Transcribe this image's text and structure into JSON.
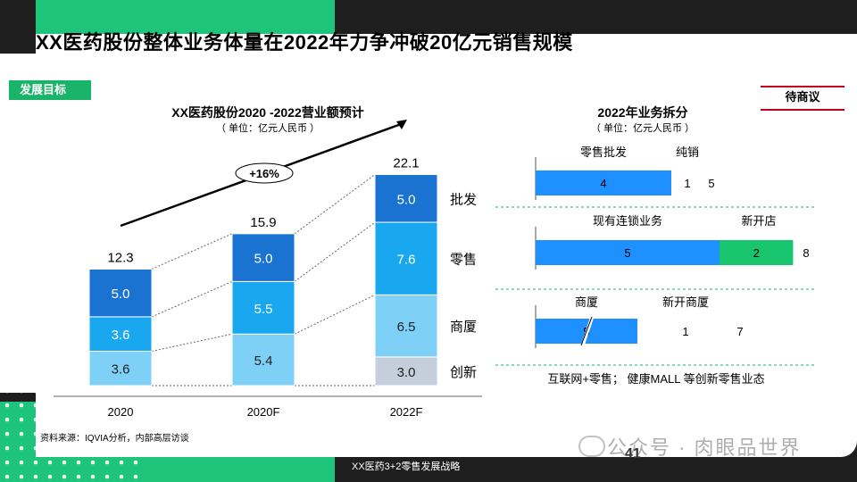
{
  "page_title": "XX医药股份整体业务体量在2022年力争冲破20亿元销售规模",
  "section_tag": "发展目标",
  "status_label": "待商议",
  "growth_label": "+16%",
  "source_note": "资料来源：IQVIA分析，内部高层访谈",
  "footer_text": "XX医药3+2零售发展战略",
  "page_number": "41",
  "watermark_text": "公众号 · 肉眼品世界",
  "colors": {
    "green": "#1dc47a",
    "wholesale": "#1a73d1",
    "retail": "#19a8ef",
    "mall": "#7fd0f7",
    "innovation": "#c5cfdc",
    "split_bar": "#1e90ff",
    "split_new": "#19c46e"
  },
  "chart_data": [
    {
      "type": "bar",
      "stacked": true,
      "title": "XX医药股份2020 -2022营业额预计",
      "subtitle": "（ 单位：亿元人民币 ）",
      "categories": [
        "2020",
        "2020F",
        "2022F"
      ],
      "totals": [
        "12.3",
        "15.9",
        "22.1"
      ],
      "series": [
        {
          "name": "创新",
          "values": [
            0,
            0,
            3.0
          ],
          "labels": [
            "",
            "",
            "3.0"
          ],
          "color": "#c5cfdc"
        },
        {
          "name": "商厦",
          "values": [
            3.6,
            5.4,
            6.5
          ],
          "labels": [
            "3.6",
            "5.4",
            "6.5"
          ],
          "color": "#7fd0f7"
        },
        {
          "name": "零售",
          "values": [
            3.6,
            5.5,
            7.6
          ],
          "labels": [
            "3.6",
            "5.5",
            "7.6"
          ],
          "color": "#19a8ef"
        },
        {
          "name": "批发",
          "values": [
            5.0,
            5.0,
            5.0
          ],
          "labels": [
            "5.0",
            "5.0",
            "5.0"
          ],
          "color": "#1a73d1"
        }
      ]
    },
    {
      "type": "bar",
      "title": "2022年业务拆分",
      "subtitle": "（ 单位：亿元人民币 ）",
      "rows": [
        {
          "header_left": "零售批发",
          "header_right": "纯销",
          "segments": [
            {
              "value": 4,
              "label": "4",
              "color": "#1e90ff"
            }
          ],
          "extra": [
            "1",
            "5"
          ]
        },
        {
          "header_left": "现有连锁业务",
          "header_right": "新开店",
          "segments": [
            {
              "value": 5,
              "label": "5",
              "color": "#1e90ff"
            },
            {
              "value": 2,
              "label": "2",
              "color": "#19c46e"
            }
          ],
          "extra": [
            "8"
          ]
        },
        {
          "header_left": "商厦",
          "header_right": "新开商厦",
          "segments": [
            {
              "value": 5,
              "label": "5",
              "color": "#1e90ff"
            }
          ],
          "extra": [
            "1",
            "7"
          ]
        }
      ],
      "footnote": "互联网+零售； 健康MALL 等创新零售业态"
    }
  ]
}
